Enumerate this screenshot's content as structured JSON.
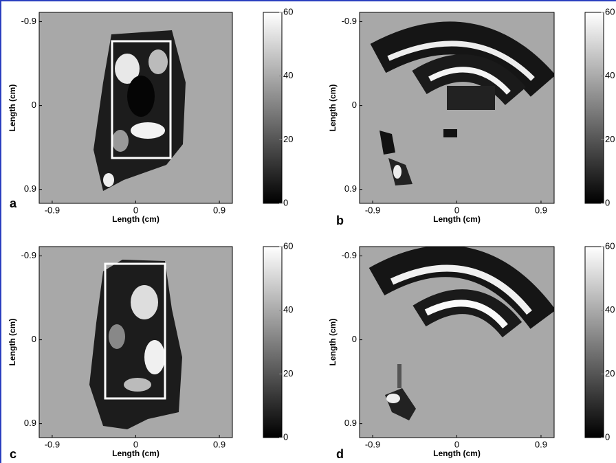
{
  "chart_data": [
    {
      "type": "heatmap",
      "panel_label": "a",
      "xlabel": "Length (cm)",
      "ylabel": "Length (cm)",
      "xlim": [
        -1.04,
        1.04
      ],
      "ylim": [
        -1.0,
        1.05
      ],
      "y_reversed": true,
      "xticks": [
        -0.9,
        0,
        0.9
      ],
      "yticks": [
        -0.9,
        0,
        0.9
      ],
      "clim": [
        0,
        60
      ],
      "cticks": [
        0,
        20,
        40,
        60
      ],
      "background": "#a8a8a8"
    },
    {
      "type": "heatmap",
      "panel_label": "b",
      "xlabel": "Length (cm)",
      "ylabel": "Length (cm)",
      "xlim": [
        -1.04,
        1.04
      ],
      "ylim": [
        -1.0,
        1.05
      ],
      "y_reversed": true,
      "xticks": [
        -0.9,
        0,
        0.9
      ],
      "yticks": [
        -0.9,
        0,
        0.9
      ],
      "clim": [
        0,
        60
      ],
      "cticks": [
        0,
        20,
        40,
        60
      ],
      "background": "#a8a8a8"
    },
    {
      "type": "heatmap",
      "panel_label": "c",
      "xlabel": "Length (cm)",
      "ylabel": "Length (cm)",
      "xlim": [
        -1.04,
        1.04
      ],
      "ylim": [
        -1.0,
        1.05
      ],
      "y_reversed": true,
      "xticks": [
        -0.9,
        0,
        0.9
      ],
      "yticks": [
        -0.9,
        0,
        0.9
      ],
      "clim": [
        0,
        60
      ],
      "cticks": [
        0,
        20,
        40,
        60
      ],
      "background": "#a8a8a8"
    },
    {
      "type": "heatmap",
      "panel_label": "d",
      "xlabel": "Length (cm)",
      "ylabel": "Length (cm)",
      "xlim": [
        -1.04,
        1.04
      ],
      "ylim": [
        -1.0,
        1.05
      ],
      "y_reversed": true,
      "xticks": [
        -0.9,
        0,
        0.9
      ],
      "yticks": [
        -0.9,
        0,
        0.9
      ],
      "clim": [
        0,
        60
      ],
      "cticks": [
        0,
        20,
        40,
        60
      ],
      "background": "#a8a8a8"
    }
  ]
}
